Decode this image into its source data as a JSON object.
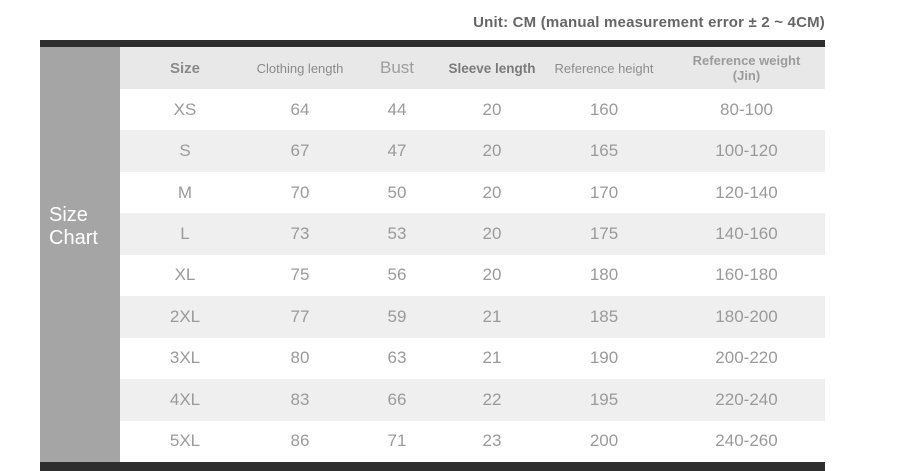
{
  "unit_note": "Unit: CM (manual measurement error ± 2 ~ 4CM)",
  "sidebar_title": {
    "line1": "Size",
    "line2": "Chart"
  },
  "chart_data": {
    "type": "table",
    "title": "Size Chart",
    "unit": "CM",
    "columns": [
      {
        "key": "size",
        "label": "Size"
      },
      {
        "key": "clothing_length",
        "label": "Clothing length"
      },
      {
        "key": "bust",
        "label": "Bust"
      },
      {
        "key": "sleeve_length",
        "label": "Sleeve length"
      },
      {
        "key": "reference_height",
        "label": "Reference height"
      },
      {
        "key": "reference_weight",
        "label": "Reference weight (Jin)",
        "label_line1": "Reference weight",
        "label_line2": "(Jin)"
      }
    ],
    "rows": [
      [
        "XS",
        "64",
        "44",
        "20",
        "160",
        "80-100"
      ],
      [
        "S",
        "67",
        "47",
        "20",
        "165",
        "100-120"
      ],
      [
        "M",
        "70",
        "50",
        "20",
        "170",
        "120-140"
      ],
      [
        "L",
        "73",
        "53",
        "20",
        "175",
        "140-160"
      ],
      [
        "XL",
        "75",
        "56",
        "20",
        "180",
        "160-180"
      ],
      [
        "2XL",
        "77",
        "59",
        "21",
        "185",
        "180-200"
      ],
      [
        "3XL",
        "80",
        "63",
        "21",
        "190",
        "200-220"
      ],
      [
        "4XL",
        "83",
        "66",
        "22",
        "195",
        "220-240"
      ],
      [
        "5XL",
        "86",
        "71",
        "23",
        "200",
        "240-260"
      ]
    ]
  },
  "colors": {
    "bar": "#2e2e2e",
    "sidebar": "#a5a5a5",
    "header_bg": "#e8e8e8",
    "stripe_bg": "#efefef",
    "data_text": "#9a9a9a",
    "unit_text": "#666666"
  }
}
